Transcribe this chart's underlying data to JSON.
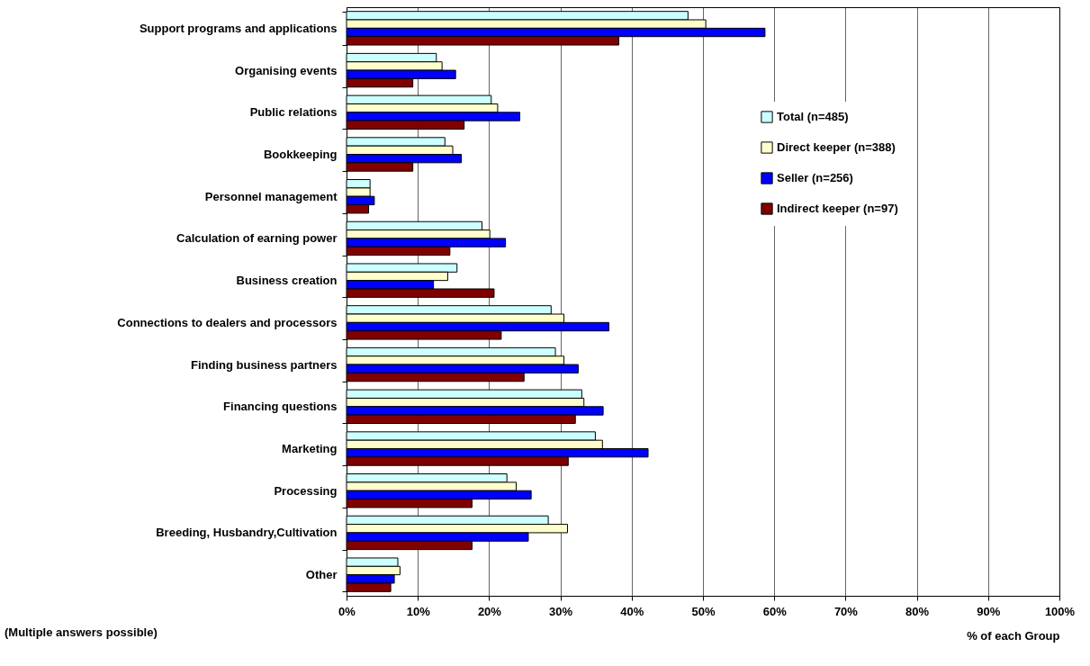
{
  "chart_data": {
    "type": "bar",
    "orientation": "horizontal",
    "xlabel": "% of each Group",
    "annotations": [
      "(Multiple answers possible)"
    ],
    "categories": [
      "Support programs and applications",
      "Organising events",
      "Public relations",
      "Bookkeeping",
      "Personnel management",
      "Calculation of earning power",
      "Business creation",
      "Connections to dealers and processors",
      "Finding business partners",
      "Financing questions",
      "Marketing",
      "Processing",
      "Breeding, Husbandry,Cultivation",
      "Other"
    ],
    "series": [
      {
        "name": "Total (n=485)",
        "color": "#ccffff",
        "values": [
          47.9,
          12.6,
          20.3,
          13.8,
          3.3,
          19.0,
          15.5,
          28.7,
          29.3,
          33.0,
          34.9,
          22.5,
          28.3,
          7.2
        ]
      },
      {
        "name": "Direct keeper (n=388)",
        "color": "#ffffcc",
        "values": [
          50.4,
          13.4,
          21.2,
          14.9,
          3.3,
          20.1,
          14.2,
          30.5,
          30.5,
          33.3,
          35.9,
          23.8,
          31.0,
          7.5
        ]
      },
      {
        "name": "Seller (n=256)",
        "color": "#0000ff",
        "values": [
          58.7,
          15.3,
          24.3,
          16.1,
          3.9,
          22.3,
          12.2,
          36.8,
          32.5,
          36.0,
          42.3,
          25.9,
          25.5,
          6.7
        ]
      },
      {
        "name": "Indirect keeper (n=97)",
        "color": "#800000",
        "values": [
          38.2,
          9.3,
          16.5,
          9.3,
          3.1,
          14.5,
          20.7,
          21.7,
          24.9,
          32.1,
          31.1,
          17.6,
          17.6,
          6.2
        ]
      }
    ],
    "xlim": [
      0,
      100
    ],
    "xticks": [
      {
        "value": 0,
        "label": "0%"
      },
      {
        "value": 10,
        "label": "10%"
      },
      {
        "value": 20,
        "label": "20%"
      },
      {
        "value": 30,
        "label": "30%"
      },
      {
        "value": 40,
        "label": "40%"
      },
      {
        "value": 50,
        "label": "50%"
      },
      {
        "value": 60,
        "label": "60%"
      },
      {
        "value": 70,
        "label": "70%"
      },
      {
        "value": 80,
        "label": "80%"
      },
      {
        "value": 90,
        "label": "90%"
      },
      {
        "value": 100,
        "label": "100%"
      }
    ],
    "grid": "x",
    "legend": "right"
  }
}
